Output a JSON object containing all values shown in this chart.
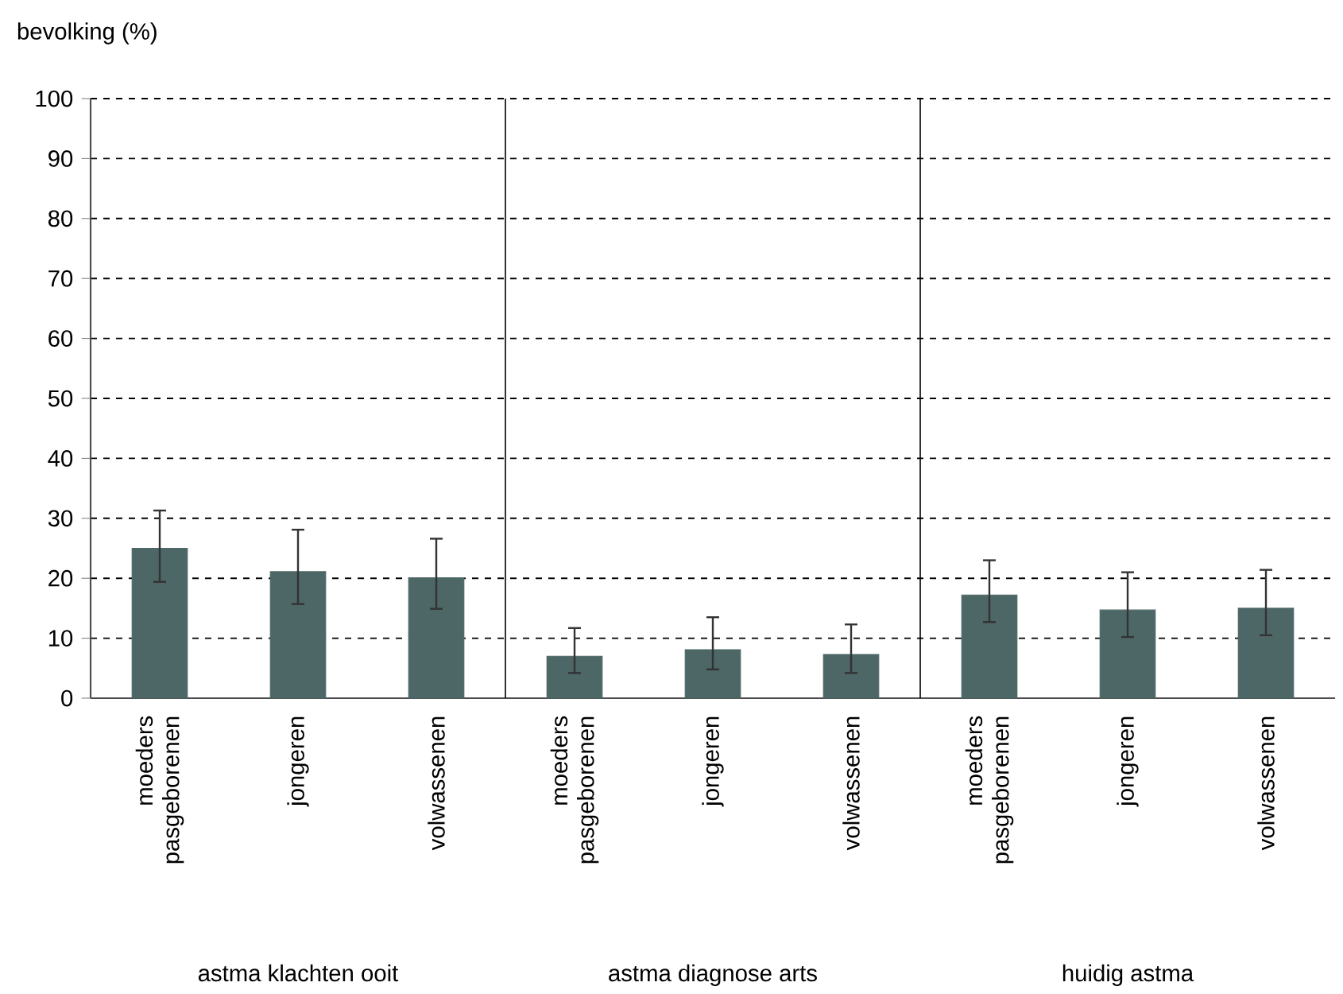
{
  "chart_data": {
    "type": "bar",
    "ylabel": "bevolking (%)",
    "categories": [
      "moeders pasgeborenen",
      "jongeren",
      "volwassenen",
      "moeders pasgeborenen",
      "jongeren",
      "volwassenen",
      "moeders pasgeborenen",
      "jongeren",
      "volwassenen"
    ],
    "values": [
      25,
      21.1,
      20.1,
      7,
      8.1,
      7.3,
      17.2,
      14.7,
      15
    ],
    "errors": [
      [
        19.4,
        31.3
      ],
      [
        15.7,
        28.1
      ],
      [
        14.9,
        26.6
      ],
      [
        4.2,
        11.7
      ],
      [
        4.8,
        13.5
      ],
      [
        4.2,
        12.3
      ],
      [
        12.7,
        23
      ],
      [
        10.2,
        21
      ],
      [
        10.5,
        21.4
      ]
    ],
    "color": "#4d6666",
    "ylim": [
      0,
      100
    ],
    "yticks": [
      0,
      10,
      20,
      30,
      40,
      50,
      60,
      70,
      80,
      90,
      100
    ],
    "grid": "y",
    "line_style": "dashed",
    "annotations": [
      "astma klachten ooit",
      "astma diagnose arts",
      "huidig astma"
    ]
  }
}
